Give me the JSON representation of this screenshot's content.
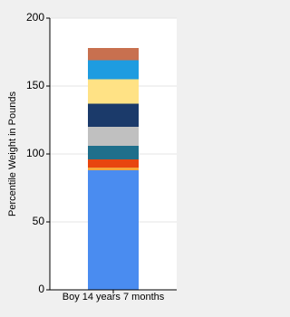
{
  "chart_data": {
    "type": "stacked_bar",
    "y_label": "Percentile Weight in Pounds",
    "categories": [
      "Boy 14 years 7 months"
    ],
    "series": [
      {
        "color": "#4a8cf0",
        "values": [
          88
        ]
      },
      {
        "color": "#f5a53a",
        "values": [
          2
        ]
      },
      {
        "color": "#e8450f",
        "values": [
          6
        ]
      },
      {
        "color": "#1f6f8b",
        "values": [
          10
        ]
      },
      {
        "color": "#c0c0c0",
        "values": [
          14
        ]
      },
      {
        "color": "#1b3a6a",
        "values": [
          17
        ]
      },
      {
        "color": "#ffe285",
        "values": [
          18
        ]
      },
      {
        "color": "#1e9ce0",
        "values": [
          14
        ]
      },
      {
        "color": "#c8704f",
        "values": [
          9
        ]
      }
    ],
    "ylim": [
      0,
      200
    ],
    "yticks": [
      0,
      50,
      100,
      150,
      200
    ],
    "grid": true
  }
}
